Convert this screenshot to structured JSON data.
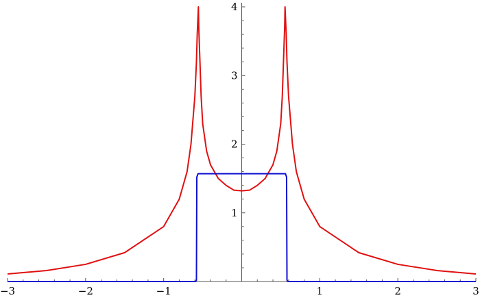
{
  "chart_data": {
    "type": "line",
    "title": "",
    "xlabel": "",
    "ylabel": "",
    "xlim": [
      -3,
      3
    ],
    "ylim": [
      0,
      4
    ],
    "grid": false,
    "legend": "none",
    "x_ticks": [
      {
        "value": -3,
        "label": "−3"
      },
      {
        "value": -2,
        "label": "−2"
      },
      {
        "value": -1,
        "label": "−1"
      },
      {
        "value": 1,
        "label": "1"
      },
      {
        "value": 2,
        "label": "2"
      },
      {
        "value": 3,
        "label": "3"
      }
    ],
    "y_ticks": [
      {
        "value": 1,
        "label": "1"
      },
      {
        "value": 2,
        "label": "2"
      },
      {
        "value": 3,
        "label": "3"
      },
      {
        "value": 4,
        "label": "4"
      }
    ],
    "series": [
      {
        "color": "#e01010",
        "x": [
          -3.0,
          -2.5,
          -2.0,
          -1.5,
          -1.0,
          -0.8,
          -0.7,
          -0.65,
          -0.6,
          -0.58,
          -0.57,
          -0.555,
          -0.55,
          -0.52,
          -0.5,
          -0.45,
          -0.4,
          -0.3,
          -0.2,
          -0.1,
          0.0,
          0.1,
          0.2,
          0.3,
          0.4,
          0.45,
          0.5,
          0.52,
          0.55,
          0.555,
          0.57,
          0.58,
          0.6,
          0.65,
          0.7,
          0.8,
          1.0,
          1.5,
          2.0,
          2.5,
          3.0
        ],
        "values": [
          0.11,
          0.16,
          0.25,
          0.42,
          0.8,
          1.2,
          1.6,
          2.0,
          2.7,
          3.2,
          3.6,
          4.0,
          3.7,
          2.7,
          2.3,
          1.9,
          1.7,
          1.5,
          1.4,
          1.33,
          1.32,
          1.33,
          1.4,
          1.5,
          1.7,
          1.9,
          2.3,
          2.7,
          3.7,
          4.0,
          3.6,
          3.2,
          2.7,
          2.0,
          1.6,
          1.2,
          0.8,
          0.42,
          0.25,
          0.16,
          0.11
        ]
      },
      {
        "color": "#1010d0",
        "x": [
          -3.0,
          -0.59,
          -0.58,
          -0.575,
          -0.56,
          0.56,
          0.575,
          0.58,
          0.59,
          3.0
        ],
        "values": [
          0.0,
          0.0,
          0.02,
          1.52,
          1.57,
          1.57,
          1.52,
          0.02,
          0.0,
          0.0
        ]
      }
    ]
  }
}
